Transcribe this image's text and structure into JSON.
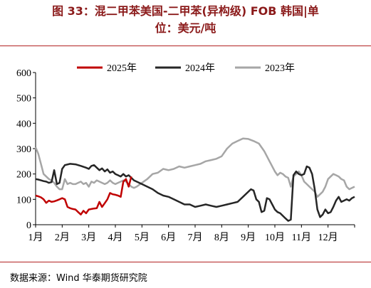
{
  "title_line1": "图 33：混二甲苯美国-二甲苯(异构级) FOB 韩国|单",
  "title_line2": "位：美元/吨",
  "source": "数据来源：Wind 华泰期货研究院",
  "colors": {
    "title": "#8b1a1a",
    "rule": "#b22222",
    "s2025": "#c00000",
    "s2024": "#262626",
    "s2023": "#a6a6a6"
  },
  "chart_data": {
    "type": "line",
    "title": "",
    "xlabel": "",
    "ylabel": "",
    "ylim": [
      0,
      600
    ],
    "yticks": [
      "0",
      "100",
      "200",
      "300",
      "400",
      "500",
      "600"
    ],
    "x_categories": [
      "1月",
      "2月",
      "3月",
      "4月",
      "5月",
      "6月",
      "7月",
      "8月",
      "9月",
      "10月",
      "11月",
      "12月"
    ],
    "legend": {
      "position": "top",
      "entries": [
        "2025年",
        "2024年",
        "2023年"
      ]
    },
    "grid": false,
    "series": [
      {
        "name": "2025年",
        "color": "#c00000",
        "points": [
          [
            1,
            115
          ],
          [
            1.1,
            112
          ],
          [
            1.2,
            108
          ],
          [
            1.3,
            100
          ],
          [
            1.4,
            86
          ],
          [
            1.5,
            95
          ],
          [
            1.6,
            90
          ],
          [
            1.7,
            92
          ],
          [
            1.8,
            96
          ],
          [
            1.9,
            100
          ],
          [
            2.0,
            105
          ],
          [
            2.1,
            100
          ],
          [
            2.2,
            70
          ],
          [
            2.3,
            65
          ],
          [
            2.4,
            62
          ],
          [
            2.5,
            60
          ],
          [
            2.6,
            50
          ],
          [
            2.7,
            40
          ],
          [
            2.8,
            55
          ],
          [
            2.9,
            45
          ],
          [
            3.0,
            60
          ],
          [
            3.1,
            62
          ],
          [
            3.2,
            64
          ],
          [
            3.3,
            65
          ],
          [
            3.4,
            90
          ],
          [
            3.5,
            70
          ],
          [
            3.6,
            85
          ],
          [
            3.7,
            100
          ],
          [
            3.8,
            125
          ],
          [
            3.9,
            120
          ],
          [
            4.0,
            118
          ],
          [
            4.1,
            115
          ],
          [
            4.2,
            110
          ],
          [
            4.3,
            170
          ],
          [
            4.4,
            180
          ],
          [
            4.5,
            150
          ],
          [
            4.6,
            190
          ]
        ]
      },
      {
        "name": "2024年",
        "color": "#262626",
        "points": [
          [
            1,
            180
          ],
          [
            1.1,
            178
          ],
          [
            1.2,
            175
          ],
          [
            1.3,
            172
          ],
          [
            1.4,
            170
          ],
          [
            1.5,
            165
          ],
          [
            1.6,
            168
          ],
          [
            1.7,
            215
          ],
          [
            1.8,
            160
          ],
          [
            1.9,
            165
          ],
          [
            2.0,
            220
          ],
          [
            2.1,
            235
          ],
          [
            2.3,
            240
          ],
          [
            2.5,
            238
          ],
          [
            2.7,
            232
          ],
          [
            2.9,
            225
          ],
          [
            3.0,
            220
          ],
          [
            3.1,
            232
          ],
          [
            3.2,
            235
          ],
          [
            3.3,
            225
          ],
          [
            3.4,
            215
          ],
          [
            3.5,
            222
          ],
          [
            3.6,
            210
          ],
          [
            3.7,
            218
          ],
          [
            3.8,
            205
          ],
          [
            3.9,
            210
          ],
          [
            4.0,
            200
          ],
          [
            4.1,
            195
          ],
          [
            4.2,
            190
          ],
          [
            4.3,
            200
          ],
          [
            4.4,
            190
          ],
          [
            4.5,
            195
          ],
          [
            4.6,
            185
          ],
          [
            4.7,
            175
          ],
          [
            4.8,
            170
          ],
          [
            5.0,
            160
          ],
          [
            5.2,
            150
          ],
          [
            5.4,
            140
          ],
          [
            5.6,
            125
          ],
          [
            5.8,
            115
          ],
          [
            6.0,
            110
          ],
          [
            6.2,
            100
          ],
          [
            6.4,
            90
          ],
          [
            6.6,
            80
          ],
          [
            6.8,
            80
          ],
          [
            7.0,
            70
          ],
          [
            7.2,
            75
          ],
          [
            7.4,
            80
          ],
          [
            7.6,
            75
          ],
          [
            7.8,
            70
          ],
          [
            8.0,
            75
          ],
          [
            8.2,
            80
          ],
          [
            8.4,
            85
          ],
          [
            8.6,
            90
          ],
          [
            8.8,
            110
          ],
          [
            9.0,
            130
          ],
          [
            9.1,
            140
          ],
          [
            9.2,
            135
          ],
          [
            9.3,
            100
          ],
          [
            9.4,
            90
          ],
          [
            9.5,
            50
          ],
          [
            9.6,
            55
          ],
          [
            9.7,
            105
          ],
          [
            9.8,
            100
          ],
          [
            9.9,
            80
          ],
          [
            10.0,
            60
          ],
          [
            10.1,
            50
          ],
          [
            10.2,
            45
          ],
          [
            10.3,
            35
          ],
          [
            10.4,
            25
          ],
          [
            10.5,
            15
          ],
          [
            10.6,
            20
          ],
          [
            10.7,
            195
          ],
          [
            10.8,
            210
          ],
          [
            10.9,
            200
          ],
          [
            11.0,
            195
          ],
          [
            11.1,
            200
          ],
          [
            11.2,
            230
          ],
          [
            11.3,
            225
          ],
          [
            11.4,
            200
          ],
          [
            11.5,
            140
          ],
          [
            11.6,
            60
          ],
          [
            11.7,
            30
          ],
          [
            11.8,
            40
          ],
          [
            11.9,
            60
          ],
          [
            12.0,
            45
          ],
          [
            12.1,
            50
          ],
          [
            12.2,
            70
          ],
          [
            12.3,
            95
          ],
          [
            12.4,
            110
          ],
          [
            12.5,
            90
          ],
          [
            12.6,
            95
          ],
          [
            12.7,
            100
          ],
          [
            12.8,
            95
          ],
          [
            12.9,
            105
          ],
          [
            13.0,
            110
          ]
        ]
      },
      {
        "name": "2023年",
        "color": "#a6a6a6",
        "points": [
          [
            1,
            305
          ],
          [
            1.1,
            280
          ],
          [
            1.2,
            240
          ],
          [
            1.3,
            200
          ],
          [
            1.4,
            190
          ],
          [
            1.5,
            180
          ],
          [
            1.6,
            175
          ],
          [
            1.7,
            165
          ],
          [
            1.8,
            150
          ],
          [
            1.9,
            140
          ],
          [
            2.0,
            140
          ],
          [
            2.1,
            180
          ],
          [
            2.2,
            160
          ],
          [
            2.3,
            165
          ],
          [
            2.4,
            160
          ],
          [
            2.5,
            160
          ],
          [
            2.6,
            165
          ],
          [
            2.7,
            170
          ],
          [
            2.8,
            160
          ],
          [
            2.9,
            165
          ],
          [
            3.0,
            150
          ],
          [
            3.1,
            170
          ],
          [
            3.2,
            165
          ],
          [
            3.3,
            175
          ],
          [
            3.4,
            170
          ],
          [
            3.5,
            165
          ],
          [
            3.6,
            160
          ],
          [
            3.7,
            165
          ],
          [
            3.8,
            175
          ],
          [
            3.9,
            165
          ],
          [
            4.0,
            160
          ],
          [
            4.1,
            165
          ],
          [
            4.2,
            170
          ],
          [
            4.3,
            175
          ],
          [
            4.4,
            170
          ],
          [
            4.5,
            160
          ],
          [
            4.6,
            150
          ],
          [
            4.7,
            145
          ],
          [
            4.8,
            150
          ],
          [
            5.0,
            165
          ],
          [
            5.2,
            180
          ],
          [
            5.4,
            200
          ],
          [
            5.6,
            205
          ],
          [
            5.8,
            220
          ],
          [
            6.0,
            215
          ],
          [
            6.2,
            220
          ],
          [
            6.4,
            230
          ],
          [
            6.6,
            225
          ],
          [
            6.8,
            230
          ],
          [
            7.0,
            235
          ],
          [
            7.2,
            240
          ],
          [
            7.4,
            250
          ],
          [
            7.6,
            255
          ],
          [
            7.8,
            260
          ],
          [
            8.0,
            270
          ],
          [
            8.2,
            300
          ],
          [
            8.4,
            320
          ],
          [
            8.6,
            330
          ],
          [
            8.8,
            340
          ],
          [
            9.0,
            338
          ],
          [
            9.2,
            330
          ],
          [
            9.4,
            320
          ],
          [
            9.6,
            290
          ],
          [
            9.8,
            250
          ],
          [
            10.0,
            210
          ],
          [
            10.1,
            195
          ],
          [
            10.2,
            205
          ],
          [
            10.3,
            200
          ],
          [
            10.4,
            190
          ],
          [
            10.5,
            185
          ],
          [
            10.6,
            150
          ],
          [
            10.7,
            190
          ],
          [
            10.8,
            200
          ],
          [
            10.9,
            210
          ],
          [
            11.0,
            195
          ],
          [
            11.1,
            170
          ],
          [
            11.2,
            160
          ],
          [
            11.3,
            150
          ],
          [
            11.4,
            140
          ],
          [
            11.5,
            130
          ],
          [
            11.6,
            110
          ],
          [
            11.7,
            120
          ],
          [
            11.8,
            130
          ],
          [
            11.9,
            150
          ],
          [
            12.0,
            180
          ],
          [
            12.1,
            190
          ],
          [
            12.2,
            200
          ],
          [
            12.3,
            195
          ],
          [
            12.4,
            190
          ],
          [
            12.5,
            180
          ],
          [
            12.6,
            175
          ],
          [
            12.7,
            150
          ],
          [
            12.8,
            140
          ],
          [
            12.9,
            145
          ],
          [
            13.0,
            150
          ]
        ]
      }
    ]
  }
}
